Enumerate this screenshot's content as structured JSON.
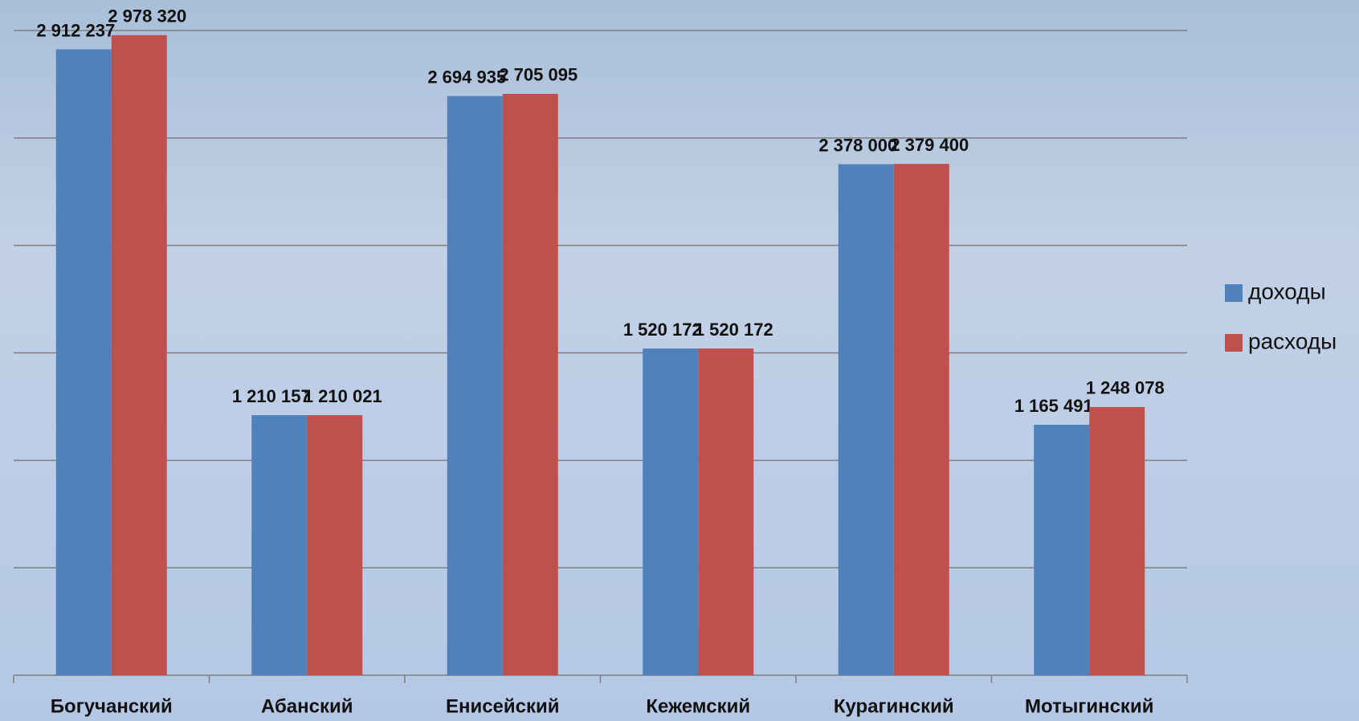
{
  "chart_data": {
    "type": "bar",
    "categories": [
      "Богучанский",
      "Абанский",
      "Енисейский",
      "Кежемский",
      "Курагинский",
      "Мотыгинский"
    ],
    "series": [
      {
        "name": "доходы",
        "color": "#4f81bd",
        "values": [
          2912237,
          1210157,
          2694935,
          1520172,
          2378000,
          1165491
        ],
        "value_labels": [
          "2 912 237",
          "1 210 157",
          "2 694 935",
          "1 520 172",
          "2 378 000",
          "1 165 491"
        ]
      },
      {
        "name": "расходы",
        "color": "#c0504d",
        "values": [
          2978320,
          1210021,
          2705095,
          1520172,
          2379400,
          1248078
        ],
        "value_labels": [
          "2 978 320",
          "1 210 021",
          "2 705 095",
          "1 520 172",
          "2 379 400",
          "1 248 078"
        ]
      }
    ],
    "ylim": [
      0,
      3000000
    ],
    "yticks": [
      0,
      500000,
      1000000,
      1500000,
      2000000,
      2500000,
      3000000
    ],
    "grid": true,
    "legend": "right"
  }
}
